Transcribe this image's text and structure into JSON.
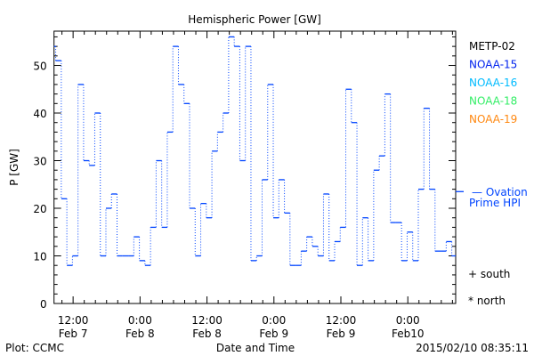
{
  "chart_data": {
    "type": "line",
    "step": true,
    "title": "Hemispheric Power [GW]",
    "xlabel": "Date and Time",
    "ylabel": "P [GW]",
    "x_units": "hours since 2015/02/07 08:35",
    "xlim": [
      0,
      72
    ],
    "ylim": [
      0,
      57.2
    ],
    "yticks": [
      0,
      10,
      20,
      30,
      40,
      50
    ],
    "y_minor_step": 2,
    "x_minor_step_hours": 2,
    "xticks": [
      {
        "hour": 3.42,
        "time": "12:00",
        "date": "Feb 7"
      },
      {
        "hour": 15.42,
        "time": "0:00",
        "date": "Feb 8"
      },
      {
        "hour": 27.42,
        "time": "12:00",
        "date": "Feb 8"
      },
      {
        "hour": 39.42,
        "time": "0:00",
        "date": "Feb 9"
      },
      {
        "hour": 51.42,
        "time": "12:00",
        "date": "Feb 9"
      },
      {
        "hour": 63.42,
        "time": "0:00",
        "date": "Feb10"
      }
    ],
    "series": [
      {
        "name": "NOAA-15",
        "color": "#0044ff",
        "start_hour": -0.7,
        "step_hours": 1,
        "values": [
          54,
          51,
          22,
          8,
          10,
          46,
          30,
          29,
          40,
          10,
          20,
          23,
          10,
          10,
          10,
          14,
          9,
          8,
          16,
          30,
          16,
          36,
          54,
          46,
          42,
          20,
          10,
          21,
          18,
          32,
          36,
          40,
          56,
          54,
          30,
          54,
          9,
          10,
          26,
          46,
          18,
          26,
          19,
          8,
          8,
          11,
          14,
          12,
          10,
          23,
          9,
          13,
          16,
          45,
          38,
          8,
          18,
          9,
          28,
          31,
          44,
          17,
          17,
          9,
          15,
          9,
          24,
          41,
          24,
          11,
          11,
          13,
          10
        ]
      }
    ],
    "ovation": {
      "label_line1": "— Ovation",
      "label_line2": "Prime HPI",
      "value": 23.5,
      "color": "#0044ff"
    },
    "legend": [
      {
        "name": "METP-02",
        "color": "#000000"
      },
      {
        "name": "NOAA-15",
        "color": "#0022ee"
      },
      {
        "name": "NOAA-16",
        "color": "#00bbff"
      },
      {
        "name": "NOAA-18",
        "color": "#33ee66"
      },
      {
        "name": "NOAA-19",
        "color": "#ff8811"
      }
    ],
    "symbols": [
      {
        "label": "+ south"
      },
      {
        "label": "* north"
      }
    ],
    "legend_placement": "right"
  },
  "footer": {
    "left": "Plot: CCMC",
    "right": "2015/02/10 08:35:11"
  }
}
